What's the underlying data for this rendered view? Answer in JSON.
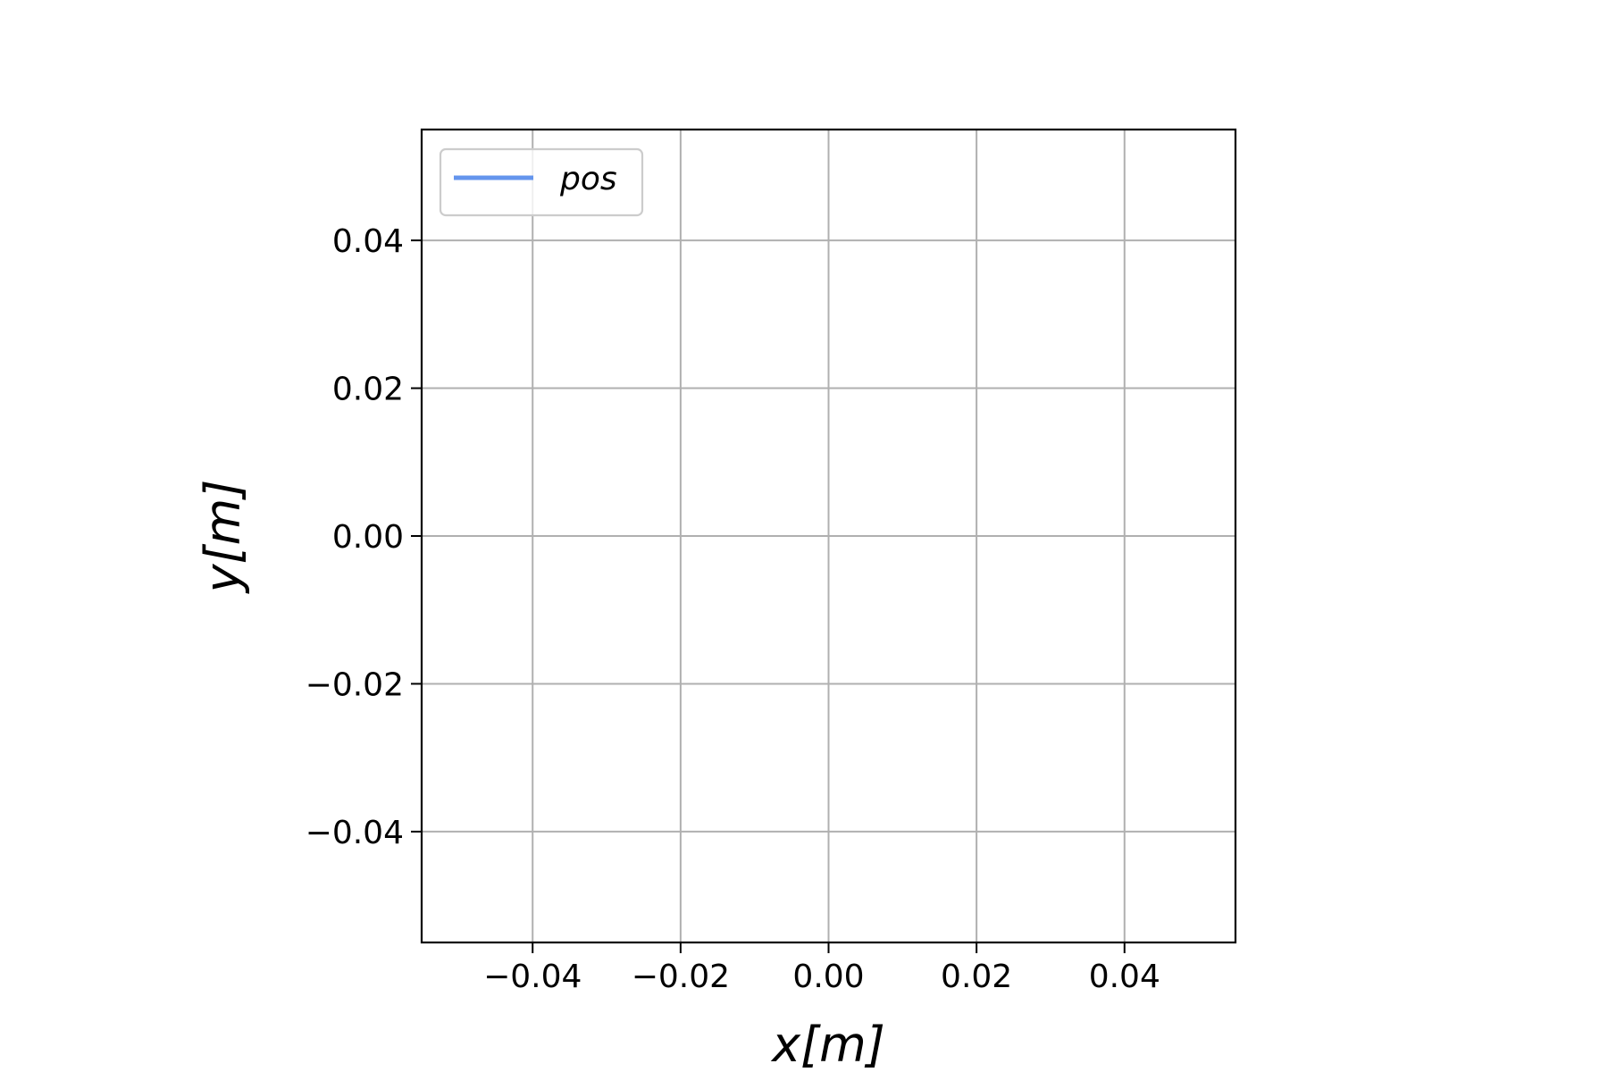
{
  "chart_data": {
    "type": "line",
    "xlabel": "x[m]",
    "ylabel": "y[m]",
    "xlim": [
      -0.055,
      0.055
    ],
    "ylim": [
      -0.055,
      0.055
    ],
    "x_ticks": [
      -0.04,
      -0.02,
      0.0,
      0.02,
      0.04
    ],
    "y_ticks": [
      -0.04,
      -0.02,
      0.0,
      0.02,
      0.04
    ],
    "x_tick_labels": [
      "−0.04",
      "−0.02",
      "0.00",
      "0.02",
      "0.04"
    ],
    "y_tick_labels": [
      "−0.04",
      "−0.02",
      "0.00",
      "0.02",
      "0.04"
    ],
    "grid": true,
    "legend_position": "top-left",
    "series": [
      {
        "name": "pos",
        "color": "#6495ed",
        "x": [],
        "y": []
      }
    ]
  }
}
